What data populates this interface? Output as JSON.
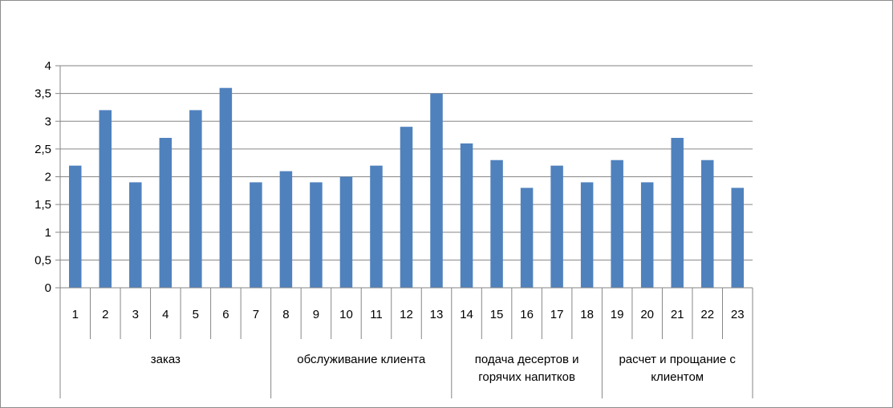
{
  "chart_data": {
    "type": "bar",
    "title": "",
    "xlabel": "",
    "ylabel": "",
    "ylim": [
      0,
      4
    ],
    "yticks": [
      "0",
      "0,5",
      "1",
      "1,5",
      "2",
      "2,5",
      "3",
      "3,5",
      "4"
    ],
    "ytick_values": [
      0,
      0.5,
      1,
      1.5,
      2,
      2.5,
      3,
      3.5,
      4
    ],
    "grid": true,
    "legend": "none",
    "bar_color": "#4f81bd",
    "categories": [
      "1",
      "2",
      "3",
      "4",
      "5",
      "6",
      "7",
      "8",
      "9",
      "10",
      "11",
      "12",
      "13",
      "14",
      "15",
      "16",
      "17",
      "18",
      "19",
      "20",
      "21",
      "22",
      "23"
    ],
    "values": [
      2.2,
      3.2,
      1.9,
      2.7,
      3.2,
      3.6,
      1.9,
      2.1,
      1.9,
      2.0,
      2.2,
      2.9,
      3.5,
      2.6,
      2.3,
      1.8,
      2.2,
      1.9,
      2.3,
      1.9,
      2.7,
      2.3,
      1.8
    ],
    "groups": [
      {
        "lines": [
          "заказ"
        ],
        "start": 0,
        "end": 6
      },
      {
        "lines": [
          "обслуживание клиента"
        ],
        "start": 7,
        "end": 12
      },
      {
        "lines": [
          "подача десертов и",
          "горячих напитков"
        ],
        "start": 13,
        "end": 17
      },
      {
        "lines": [
          "расчет и прощание с",
          "клиентом"
        ],
        "start": 18,
        "end": 22
      }
    ]
  }
}
